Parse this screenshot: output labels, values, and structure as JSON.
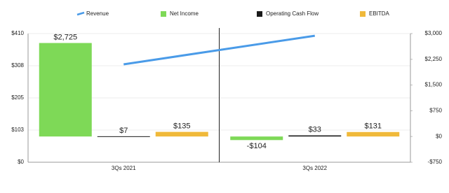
{
  "chart_data": {
    "type": "bar",
    "categories": [
      "3Qs 2021",
      "3Qs 2022"
    ],
    "series": [
      {
        "name": "Revenue",
        "type": "line",
        "color": "#4a9be8",
        "values": [
          312,
          403
        ]
      },
      {
        "name": "Net Income",
        "color": "#7ed957",
        "axis": "y2",
        "values": [
          2725,
          -104
        ],
        "value_labels": [
          "$2,725",
          "-$104"
        ]
      },
      {
        "name": "Operating Cash Flow",
        "color": "#1a1a1a",
        "axis": "y2",
        "values": [
          7,
          33
        ],
        "value_labels": [
          "$7",
          "$33"
        ]
      },
      {
        "name": "EBITDA",
        "color": "#f0b93a",
        "axis": "y2",
        "values": [
          135,
          131
        ],
        "value_labels": [
          "$135",
          "$131"
        ]
      }
    ],
    "ylim": [
      0,
      410
    ],
    "yticks": [
      {
        "value": 0,
        "label": "$0"
      },
      {
        "value": 102.5,
        "label": "$103"
      },
      {
        "value": 205,
        "label": "$205"
      },
      {
        "value": 307.5,
        "label": "$308"
      },
      {
        "value": 410,
        "label": "$410"
      }
    ],
    "y2lim": [
      -750,
      3000
    ],
    "y2ticks": [
      {
        "value": -750,
        "label": "-$750"
      },
      {
        "value": 0,
        "label": "$0"
      },
      {
        "value": 750,
        "label": "$750"
      },
      {
        "value": 1500,
        "label": "$1,500"
      },
      {
        "value": 2250,
        "label": "$2,250"
      },
      {
        "value": 3000,
        "label": "$3,000"
      }
    ],
    "legend": "top"
  }
}
